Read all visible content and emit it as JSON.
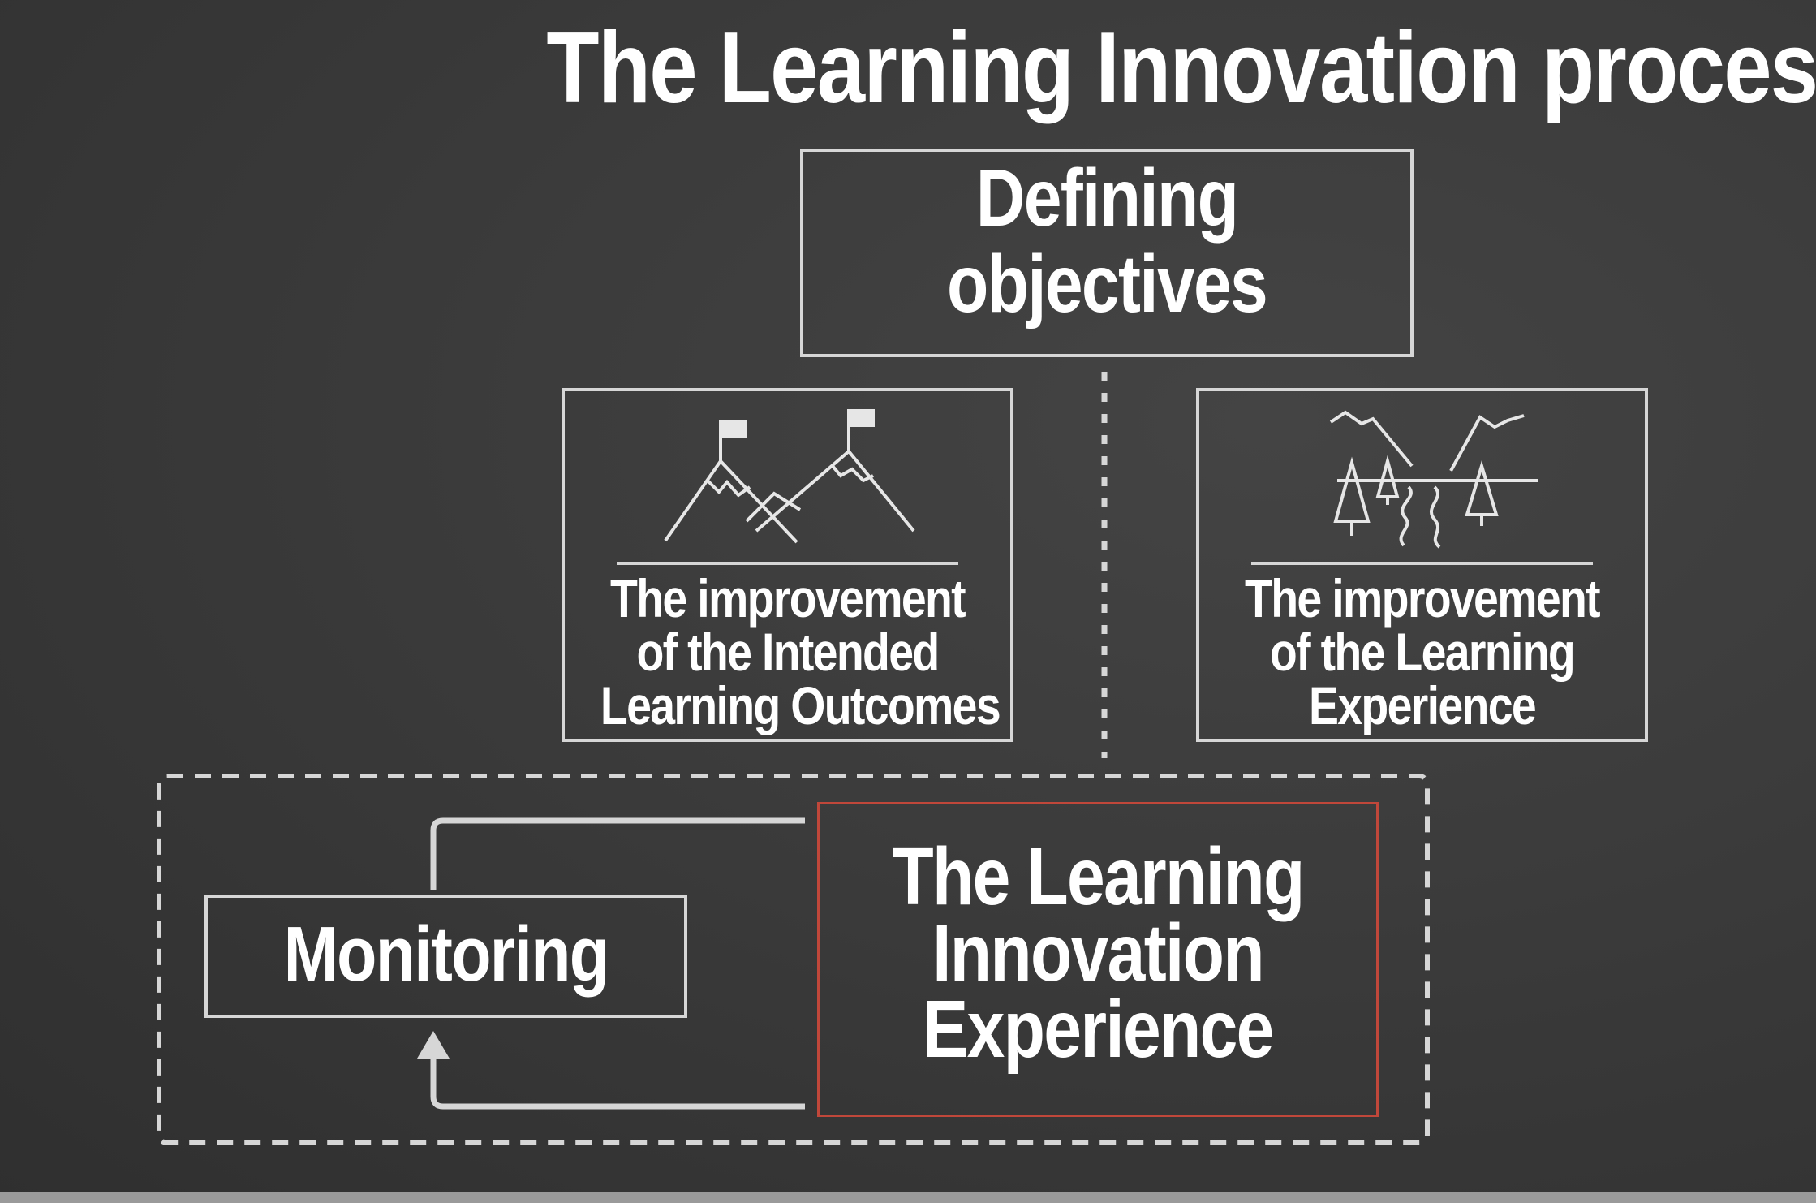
{
  "title": "The Learning Innovation process",
  "nodes": {
    "defining": {
      "lines": [
        "Defining",
        "objectives"
      ]
    },
    "outcomes": {
      "icon": "mountains-with-flags-icon",
      "lines": [
        "The improvement",
        "of the Intended",
        "Learning Outcomes"
      ]
    },
    "experience": {
      "icon": "landscape-river-trees-icon",
      "lines": [
        "The improvement",
        "of the Learning",
        "Experience"
      ]
    },
    "monitoring": {
      "lines": [
        "Monitoring"
      ]
    },
    "innovation": {
      "lines": [
        "The Learning",
        "Innovation",
        "Experience"
      ],
      "border_color": "#c0473a"
    }
  },
  "colors": {
    "background": "#3a3a3a",
    "line": "#d6d6d6",
    "accent": "#c0473a",
    "text": "#ffffff"
  },
  "connectors": [
    {
      "from": "defining",
      "to": "innovation",
      "style": "dotted"
    },
    {
      "from": "innovation",
      "to": "monitoring",
      "style": "solid-arrow"
    },
    {
      "from": "monitoring",
      "to": "innovation",
      "style": "solid"
    }
  ],
  "group": {
    "members": [
      "monitoring",
      "innovation"
    ],
    "style": "dashed"
  }
}
